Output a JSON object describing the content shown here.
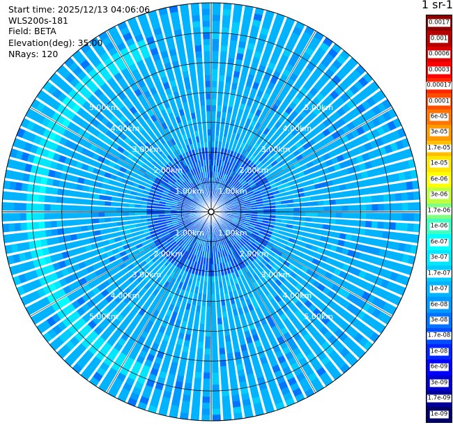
{
  "header": {
    "start_time": "Start time: 2025/12/13 04:06:06",
    "instrument": "WLS200s-181",
    "field": "Field: BETA",
    "elevation": "Elevation(deg): 35.00",
    "nrays": "NRays: 120"
  },
  "colorbar": {
    "title": "m-1 sr-1",
    "labels": [
      "0.0017",
      "0.001",
      "0.0006",
      "0.0003",
      "0.00017",
      "0.0001",
      "6e-05",
      "3e-05",
      "1.7e-05",
      "1e-05",
      "6e-06",
      "3e-06",
      "1.7e-06",
      "1e-06",
      "6e-07",
      "3e-07",
      "1.7e-07",
      "1e-07",
      "6e-08",
      "3e-08",
      "1.7e-08",
      "1e-08",
      "6e-09",
      "3e-09",
      "1.7e-09",
      "1e-09"
    ],
    "colors": [
      "#8b0000",
      "#b40000",
      "#dc0000",
      "#ff0000",
      "#ff2600",
      "#ff4d00",
      "#ff7300",
      "#ff9900",
      "#ffbf00",
      "#ffe600",
      "#ffff00",
      "#c0ff40",
      "#80ff80",
      "#40ffc0",
      "#00ffff",
      "#00e6ff",
      "#00ccff",
      "#00b3ff",
      "#0099ff",
      "#0073ff",
      "#004dff",
      "#0026ff",
      "#0000ff",
      "#0000cc",
      "#000099",
      "#000066"
    ]
  },
  "chart_data": {
    "type": "heatmap",
    "projection": "polar PPI",
    "field": "BETA",
    "nrays": 120,
    "elevation_deg": 35.0,
    "range_rings_km": [
      1,
      2,
      3,
      4,
      5
    ],
    "ring_label_format": "{r}.00km",
    "max_range_km": 7.0,
    "value_range": [
      1e-09,
      0.0017
    ],
    "dominant_level": "1e-07",
    "enhanced_band": {
      "range_km": [
        5.6,
        6.2
      ],
      "sector": "west",
      "level": "3e-07"
    }
  }
}
